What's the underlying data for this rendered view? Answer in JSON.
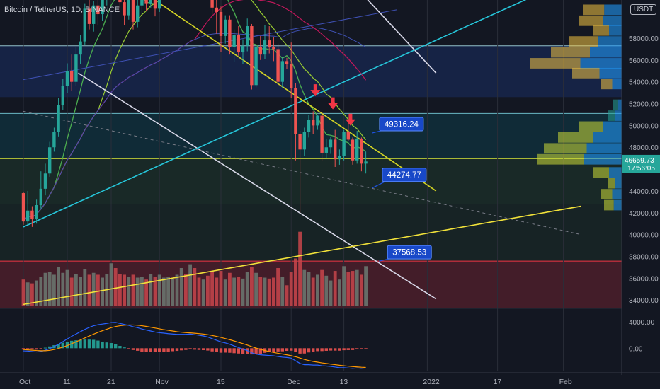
{
  "header": {
    "title": "Bitcoin / TetherUS, 1D, BINANCE",
    "unit": "USDT"
  },
  "colors": {
    "background": "#131722",
    "up": "#26a69a",
    "down": "#ef5350",
    "ma_green": "#4caf50",
    "ma_lime": "#9acd32",
    "ma_pink": "#c2185b",
    "ma_blue": "#3f51b5",
    "channel_cyan": "#26c6da",
    "down_line_yellow": "#d4d424",
    "support_yellow": "#f2e23a",
    "white_trend": "#d8d8e8",
    "macd_line": "#2962ff",
    "signal_line": "#ff9800",
    "callout": "#1e53e5",
    "arrow": "#f23645",
    "current_price": "#26a69a"
  },
  "chart_data": {
    "type": "candlestick",
    "symbol": "Bitcoin / TetherUS",
    "timeframe": "1D",
    "exchange": "BINANCE",
    "currency": "USDT",
    "price_axis": {
      "ticks": [
        "34000.00",
        "36000.00",
        "38000.00",
        "40000.00",
        "42000.00",
        "44000.00",
        "48000.00",
        "50000.00",
        "52000.00",
        "54000.00",
        "56000.00",
        "58000.00"
      ],
      "range": [
        33300,
        61500
      ]
    },
    "macd_axis": {
      "ticks": [
        "4000.00",
        "0.00"
      ],
      "range": [
        -3500,
        5600
      ]
    },
    "time_axis": {
      "labels": [
        "Oct",
        "11",
        "21",
        "Nov",
        "15",
        "Dec",
        "13",
        "2022",
        "17",
        "Feb"
      ],
      "label_days": [
        0,
        10,
        20,
        31,
        45,
        61,
        73,
        92,
        108,
        123
      ]
    },
    "current_price": {
      "value": "46659.73",
      "countdown": "17:56:05"
    },
    "callouts": [
      {
        "label": "49316.24",
        "value": 49316.24,
        "day": 79.5
      },
      {
        "label": "44274.77",
        "value": 44274.77,
        "day": 79.5
      },
      {
        "label": "37568.53",
        "value": 37568.53,
        "day": 81
      }
    ],
    "arrows_down": [
      {
        "day": 66.5,
        "value": 53000
      },
      {
        "day": 70.5,
        "value": 51800
      },
      {
        "day": 74.5,
        "value": 50300
      }
    ],
    "horizontal_levels": [
      {
        "value": 57300,
        "band_from": 52600
      },
      {
        "value": 51100,
        "band_from": 46950
      },
      {
        "value": 46950,
        "band_from": 42800
      },
      {
        "value": 42800,
        "band_from": 37568.53
      }
    ],
    "trend_lines": [
      {
        "name": "",
        "color": "white_trend",
        "from": [
          12.5,
          54800
        ],
        "to": [
          94,
          34100
        ]
      },
      {
        "name": "",
        "color": "white_trend",
        "from": [
          75,
          63000
        ],
        "to": [
          94,
          54800
        ]
      },
      {
        "name": "",
        "color": "channel_cyan",
        "from": [
          0,
          40700
        ],
        "to": [
          117,
          62000
        ]
      },
      {
        "name": "",
        "color": "ma_blue",
        "from": [
          0,
          54200
        ],
        "to": [
          85,
          60600
        ]
      },
      {
        "name": "",
        "color": "down_line_yellow",
        "from": [
          31,
          61200
        ],
        "to": [
          94,
          44000
        ]
      },
      {
        "name": "",
        "color": "support_yellow",
        "from": [
          0,
          33600
        ],
        "to": [
          127,
          42600
        ]
      },
      {
        "name": "",
        "color": "dashed_gray",
        "from": [
          0,
          51300
        ],
        "to": [
          127,
          40000
        ]
      }
    ],
    "candles": [
      [
        43800,
        43900,
        40900,
        41200
      ],
      [
        41200,
        44000,
        40900,
        42200
      ],
      [
        42200,
        42600,
        40700,
        41400
      ],
      [
        41400,
        43200,
        41000,
        42700
      ],
      [
        42700,
        45800,
        42400,
        44200
      ],
      [
        44200,
        46500,
        43600,
        45600
      ],
      [
        45600,
        48500,
        45300,
        48000
      ],
      [
        48000,
        49800,
        47600,
        49400
      ],
      [
        49400,
        52500,
        49000,
        51900
      ],
      [
        51900,
        54300,
        51400,
        53600
      ],
      [
        53600,
        55700,
        53000,
        55000
      ],
      [
        55000,
        56500,
        53200,
        54000
      ],
      [
        54000,
        57200,
        53600,
        56500
      ],
      [
        56500,
        58300,
        55600,
        57700
      ],
      [
        57700,
        61200,
        57400,
        60700
      ],
      [
        60700,
        61800,
        58800,
        59300
      ],
      [
        59300,
        61400,
        58600,
        61000
      ],
      [
        61000,
        61700,
        59200,
        60200
      ],
      [
        60200,
        62100,
        59600,
        61600
      ],
      [
        61600,
        63100,
        61000,
        62800
      ],
      [
        62800,
        65900,
        62300,
        64900
      ],
      [
        64900,
        65600,
        62100,
        63000
      ],
      [
        63000,
        63200,
        60500,
        61300
      ],
      [
        61300,
        61700,
        59200,
        60100
      ],
      [
        60100,
        62500,
        59700,
        62200
      ],
      [
        62200,
        63000,
        58800,
        59500
      ],
      [
        59500,
        61500,
        59000,
        61000
      ],
      [
        61000,
        62600,
        60200,
        62100
      ],
      [
        62100,
        62800,
        60500,
        61200
      ],
      [
        61200,
        62600,
        60800,
        62300
      ],
      [
        62300,
        62600,
        60000,
        60700
      ],
      [
        60700,
        63600,
        60400,
        63200
      ],
      [
        63200,
        64400,
        62400,
        63600
      ],
      [
        63600,
        64600,
        62800,
        64100
      ],
      [
        64100,
        65200,
        63500,
        64800
      ],
      [
        64800,
        66200,
        63900,
        65600
      ],
      [
        65600,
        67800,
        64800,
        67300
      ],
      [
        67300,
        68000,
        65500,
        66100
      ],
      [
        66100,
        69000,
        65800,
        68400
      ],
      [
        68400,
        68800,
        63900,
        64600
      ],
      [
        64600,
        65400,
        63200,
        64200
      ],
      [
        64200,
        65300,
        63800,
        64900
      ],
      [
        64900,
        66100,
        63000,
        63600
      ],
      [
        63600,
        64500,
        60100,
        60800
      ],
      [
        60800,
        61600,
        58400,
        60400
      ],
      [
        60400,
        60900,
        56700,
        58200
      ],
      [
        58200,
        60100,
        57500,
        59700
      ],
      [
        59700,
        60100,
        56500,
        57200
      ],
      [
        57200,
        58800,
        55800,
        58300
      ],
      [
        58300,
        59100,
        56400,
        56700
      ],
      [
        56700,
        57900,
        55600,
        57300
      ],
      [
        57300,
        59800,
        56800,
        59100
      ],
      [
        59100,
        59300,
        53300,
        53700
      ],
      [
        53700,
        57400,
        53500,
        57200
      ],
      [
        57200,
        58200,
        56000,
        56500
      ],
      [
        56500,
        59200,
        56100,
        57800
      ],
      [
        57800,
        59100,
        56600,
        57200
      ],
      [
        57200,
        58100,
        55900,
        57000
      ],
      [
        57000,
        57500,
        53600,
        54000
      ],
      [
        54000,
        56300,
        53400,
        55900
      ],
      [
        55900,
        56200,
        55200,
        55600
      ],
      [
        55600,
        57600,
        52500,
        53400
      ],
      [
        53400,
        53900,
        46800,
        49200
      ],
      [
        49200,
        49500,
        42000,
        47800
      ],
      [
        47800,
        49800,
        47200,
        49400
      ],
      [
        49400,
        51000,
        48900,
        50500
      ],
      [
        50500,
        51300,
        49200,
        50000
      ],
      [
        50000,
        51000,
        49600,
        50900
      ],
      [
        50900,
        51200,
        46800,
        47500
      ],
      [
        47500,
        48800,
        47000,
        48000
      ],
      [
        48000,
        49000,
        47400,
        48700
      ],
      [
        48700,
        49600,
        46200,
        46900
      ],
      [
        46900,
        47800,
        46400,
        47200
      ],
      [
        47200,
        49600,
        46800,
        49400
      ],
      [
        49400,
        50300,
        48600,
        48700
      ],
      [
        48700,
        48900,
        46400,
        46800
      ],
      [
        46800,
        49500,
        46500,
        48800
      ],
      [
        48800,
        48900,
        45800,
        46500
      ],
      [
        46500,
        47600,
        45600,
        46700
      ]
    ],
    "volume": [
      {
        "name": "",
        "values": [
          28,
          25,
          24,
          27,
          31,
          35,
          36,
          33,
          41,
          35,
          38,
          30,
          34,
          31,
          39,
          33,
          35,
          33,
          30,
          34,
          45,
          40,
          34,
          33,
          31,
          33,
          30,
          31,
          28,
          34,
          31,
          33,
          30,
          31,
          29,
          33,
          40,
          34,
          44,
          40,
          30,
          28,
          32,
          37,
          30,
          37,
          28,
          35,
          30,
          31,
          29,
          36,
          41,
          35,
          31,
          30,
          29,
          30,
          40,
          31,
          22,
          36,
          50,
          78,
          38,
          36,
          30,
          33,
          38,
          32,
          27,
          37,
          28,
          42,
          36,
          37,
          38,
          33,
          42
        ]
      }
    ],
    "macd": {
      "macd_line": [
        -400,
        -430,
        -500,
        -560,
        -500,
        -300,
        -50,
        250,
        600,
        1000,
        1400,
        1800,
        2150,
        2500,
        2850,
        3150,
        3400,
        3550,
        3650,
        3750,
        3880,
        3900,
        3750,
        3600,
        3450,
        3250,
        3100,
        2900,
        2750,
        2600,
        2450,
        2350,
        2280,
        2200,
        2150,
        2100,
        2100,
        2100,
        2150,
        2050,
        1950,
        1850,
        1700,
        1450,
        1200,
        950,
        800,
        600,
        350,
        100,
        -150,
        -350,
        -700,
        -900,
        -1000,
        -1050,
        -1100,
        -1150,
        -1250,
        -1350,
        -1400,
        -1500,
        -1900,
        -2300,
        -2500,
        -2500,
        -2550,
        -2550,
        -2650,
        -2700,
        -2750,
        -2850,
        -2950,
        -2950,
        -3000,
        -3050,
        -3000,
        -3050,
        -3000
      ],
      "signal_line": [
        -200,
        -250,
        -300,
        -350,
        -380,
        -380,
        -320,
        -200,
        -40,
        170,
        400,
        680,
        960,
        1250,
        1550,
        1850,
        2130,
        2400,
        2650,
        2880,
        3100,
        3280,
        3400,
        3480,
        3520,
        3520,
        3480,
        3400,
        3300,
        3180,
        3050,
        2930,
        2800,
        2700,
        2600,
        2500,
        2420,
        2360,
        2320,
        2270,
        2210,
        2140,
        2050,
        1930,
        1790,
        1630,
        1460,
        1290,
        1100,
        900,
        690,
        480,
        240,
        20,
        -180,
        -350,
        -500,
        -640,
        -760,
        -880,
        -1000,
        -1130,
        -1290,
        -1490,
        -1700,
        -1860,
        -2000,
        -2110,
        -2220,
        -2310,
        -2400,
        -2490,
        -2580,
        -2650,
        -2720,
        -2780,
        -2830,
        -2880,
        -2910
      ]
    }
  }
}
